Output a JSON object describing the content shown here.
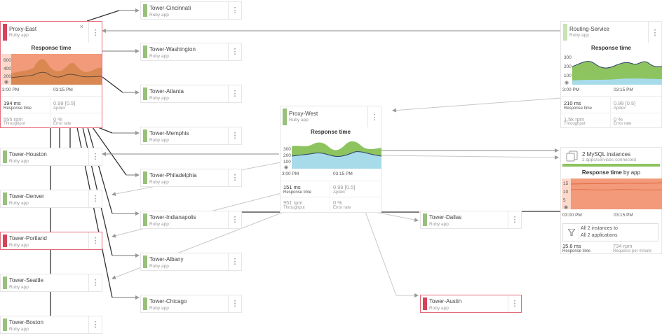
{
  "nodes": [
    {
      "name": "Tower-Cincinnati",
      "type": "Ruby app"
    },
    {
      "name": "Tower-Washington",
      "type": "Ruby app"
    },
    {
      "name": "Tower-Atlanta",
      "type": "Ruby app"
    },
    {
      "name": "Tower-Memphis",
      "type": "Ruby app"
    },
    {
      "name": "Tower-Philadelphia",
      "type": "Ruby app"
    },
    {
      "name": "Tower-Indianapolis",
      "type": "Ruby app"
    },
    {
      "name": "Tower-Albany",
      "type": "Ruby app"
    },
    {
      "name": "Tower-Chicago",
      "type": "Ruby app"
    },
    {
      "name": "Tower-Houston",
      "type": "Ruby app"
    },
    {
      "name": "Tower-Denver",
      "type": "Ruby app"
    },
    {
      "name": "Tower-Portland",
      "type": "Ruby app",
      "status": "alert"
    },
    {
      "name": "Tower-Seattle",
      "type": "Ruby app"
    },
    {
      "name": "Tower-Boston",
      "type": "Ruby app"
    },
    {
      "name": "Tower-Dallas",
      "type": "Ruby app"
    },
    {
      "name": "Tower-Austin",
      "type": "Ruby app",
      "status": "alert"
    }
  ],
  "proxy_east": {
    "name": "Proxy-East",
    "type": "Ruby app",
    "close": "×",
    "chart_title": "Response time",
    "y_ticks": [
      "600",
      "400",
      "200"
    ],
    "x_ticks": [
      "3:00 PM",
      "03:15 PM"
    ],
    "response_time": "194 ms",
    "response_time_label": "Response time",
    "apdex": "0.99 [0.5]",
    "apdex_label": "Apdex",
    "throughput": "555 rpm",
    "throughput_label": "Throughput",
    "error_rate": "0 %",
    "error_rate_label": "Error rate"
  },
  "proxy_west": {
    "name": "Proxy-West",
    "type": "Ruby app",
    "chart_title": "Response time",
    "y_ticks": [
      "300",
      "200",
      "100"
    ],
    "x_ticks": [
      "3:00 PM",
      "03:15 PM"
    ],
    "response_time": "151 ms",
    "response_time_label": "Response time",
    "apdex": "0.99 [0.5]",
    "apdex_label": "Apdex",
    "throughput": "951 rpm",
    "throughput_label": "Throughput",
    "error_rate": "0 %",
    "error_rate_label": "Error rate"
  },
  "routing_service": {
    "name": "Routing-Service",
    "type": "Ruby app",
    "chart_title": "Response time",
    "y_ticks": [
      "300",
      "200",
      "100"
    ],
    "x_ticks": [
      "3:00 PM",
      "03:15 PM"
    ],
    "response_time": "210 ms",
    "response_time_label": "Response time",
    "apdex": "0.99 [0.5]",
    "apdex_label": "Apdex",
    "throughput": "1.5k rpm",
    "throughput_label": "Throughput",
    "error_rate": "0 %",
    "error_rate_label": "Error rate"
  },
  "mysql": {
    "name": "2 MySQL instances",
    "sub": "2 apps/services connected",
    "chart_title_bold": "Response time",
    "chart_title_rest": " by app",
    "y_ticks": [
      "15",
      "10",
      "5"
    ],
    "x_ticks": [
      "03:00 PM",
      "03:15 PM"
    ],
    "filter_line1": "All 2 instances to",
    "filter_line2": "All 2 applications",
    "response_time": "15.6 ms",
    "response_time_label": "Response time",
    "rpm": "734 rpm",
    "rpm_label": "Requests per minute"
  },
  "menu_glyph": "⋮",
  "colors": {
    "healthy": "#98c07a",
    "alert": "#d5445a",
    "area_green": "#8dc45f",
    "area_blue": "#a8dbea",
    "area_orange": "#f29a79"
  }
}
